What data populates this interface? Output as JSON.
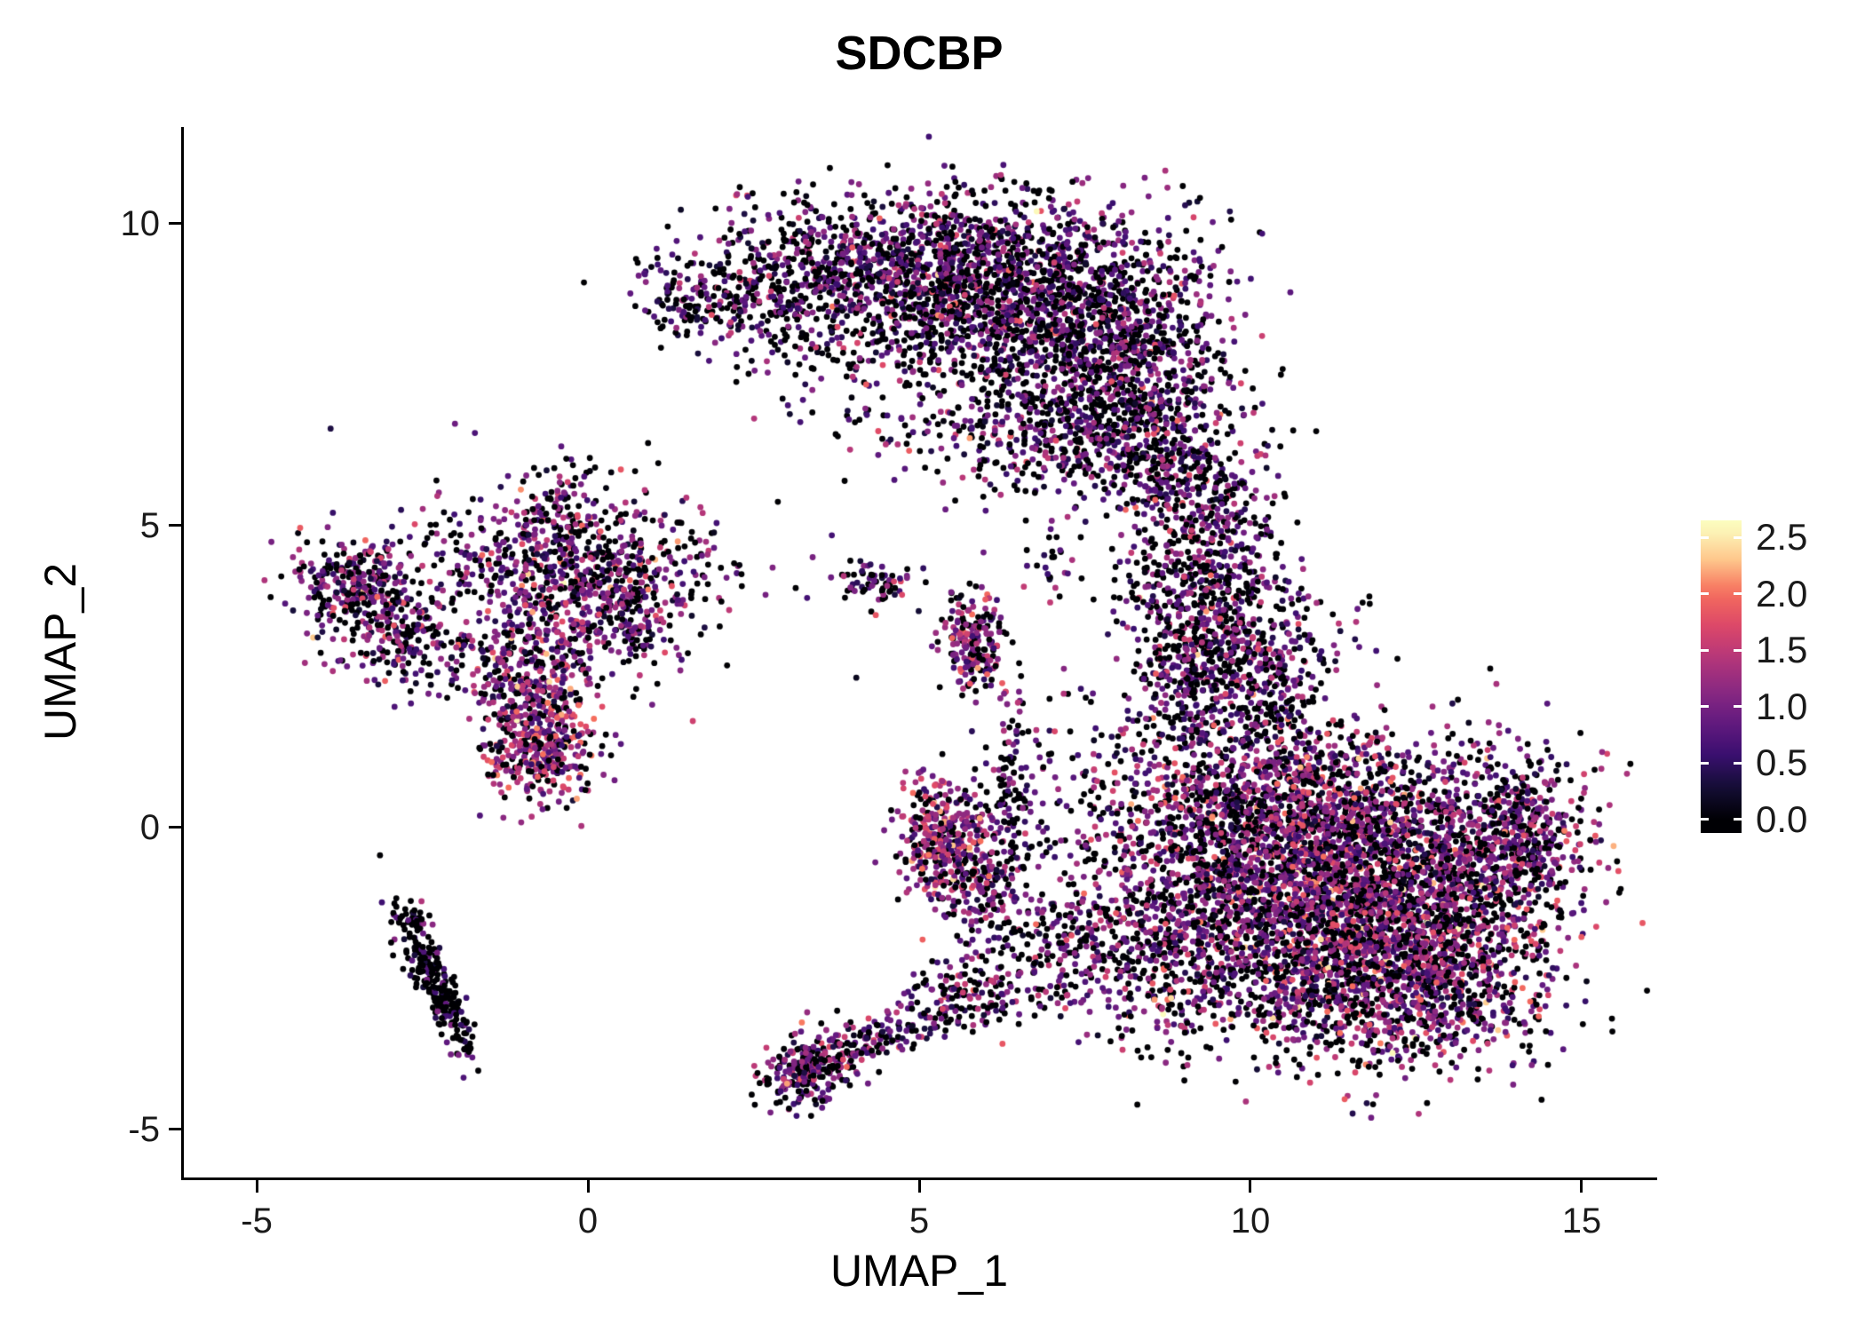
{
  "title": "SDCBP",
  "chart_data": {
    "type": "scatter",
    "title": "SDCBP",
    "xlabel": "UMAP_1",
    "ylabel": "UMAP_2",
    "xlim": [
      -6.1,
      16.1
    ],
    "ylim": [
      -5.8,
      11.6
    ],
    "xticks": [
      -5,
      0,
      5,
      10,
      15
    ],
    "yticks": [
      -5,
      0,
      5,
      10
    ],
    "grid": false,
    "background": "#ffffff",
    "point_radius_px": 3.4,
    "seed": 42,
    "colorbar": {
      "position": "right",
      "ticks": [
        2.5,
        2.0,
        1.5,
        1.0,
        0.5,
        0.0
      ],
      "domain": [
        -0.12,
        2.65
      ],
      "value_range": [
        0,
        2.6
      ],
      "stops": [
        "#000004",
        "#140e36",
        "#3b0f70",
        "#641a80",
        "#8c2981",
        "#b73779",
        "#de4968",
        "#f7705c",
        "#fec98d",
        "#fcfdbf"
      ]
    },
    "clusters": [
      {
        "cx": 4.6,
        "cy": 9.4,
        "sx": 1.5,
        "sy": 0.55,
        "rot": 0,
        "n": 850,
        "p0": 0.42,
        "mean": 0.85,
        "sd": 0.45
      },
      {
        "cx": 6.6,
        "cy": 8.7,
        "sx": 1.2,
        "sy": 0.85,
        "rot": 0,
        "n": 1300,
        "p0": 0.42,
        "mean": 0.85,
        "sd": 0.45
      },
      {
        "cx": 8.1,
        "cy": 7.5,
        "sx": 0.85,
        "sy": 0.95,
        "rot": 0,
        "n": 800,
        "p0": 0.42,
        "mean": 0.85,
        "sd": 0.45
      },
      {
        "cx": 7.2,
        "cy": 6.4,
        "sx": 1.1,
        "sy": 0.55,
        "rot": 0,
        "n": 350,
        "p0": 0.45,
        "mean": 0.85,
        "sd": 0.45
      },
      {
        "cx": 2.9,
        "cy": 8.8,
        "sx": 0.8,
        "sy": 0.55,
        "rot": 0,
        "n": 260,
        "p0": 0.45,
        "mean": 0.8,
        "sd": 0.45
      },
      {
        "cx": 5.0,
        "cy": 7.9,
        "sx": 1.3,
        "sy": 0.75,
        "rot": 0,
        "n": 220,
        "p0": 0.5,
        "mean": 0.8,
        "sd": 0.45
      },
      {
        "cx": 1.5,
        "cy": 8.8,
        "sx": 0.35,
        "sy": 0.3,
        "rot": 0,
        "n": 90,
        "p0": 0.45,
        "mean": 0.8,
        "sd": 0.45
      },
      {
        "cx": 8.7,
        "cy": 5.8,
        "sx": 0.45,
        "sy": 0.55,
        "rot": 0,
        "n": 140,
        "p0": 0.45,
        "mean": 0.85,
        "sd": 0.45
      },
      {
        "cx": 9.4,
        "cy": 4.6,
        "sx": 0.5,
        "sy": 1.0,
        "rot": 0,
        "n": 450,
        "p0": 0.4,
        "mean": 0.9,
        "sd": 0.45
      },
      {
        "cx": 9.8,
        "cy": 2.6,
        "sx": 0.75,
        "sy": 0.9,
        "rot": 0,
        "n": 650,
        "p0": 0.4,
        "mean": 0.9,
        "sd": 0.45
      },
      {
        "cx": 8.8,
        "cy": 3.4,
        "sx": 0.4,
        "sy": 0.9,
        "rot": 0,
        "n": 150,
        "p0": 0.5,
        "mean": 0.9,
        "sd": 0.45
      },
      {
        "cx": 11.2,
        "cy": -1.0,
        "sx": 1.5,
        "sy": 1.05,
        "rot": 0,
        "n": 2500,
        "p0": 0.33,
        "mean": 1.05,
        "sd": 0.5
      },
      {
        "cx": 12.2,
        "cy": -2.5,
        "sx": 1.15,
        "sy": 0.75,
        "rot": 0,
        "n": 1200,
        "p0": 0.33,
        "mean": 1.05,
        "sd": 0.5
      },
      {
        "cx": 10.4,
        "cy": 0.4,
        "sx": 1.2,
        "sy": 0.75,
        "rot": 0,
        "n": 950,
        "p0": 0.35,
        "mean": 1.0,
        "sd": 0.5
      },
      {
        "cx": 13.5,
        "cy": -0.4,
        "sx": 0.8,
        "sy": 0.85,
        "rot": 0,
        "n": 650,
        "p0": 0.35,
        "mean": 1.0,
        "sd": 0.5
      },
      {
        "cx": 9.0,
        "cy": -2.0,
        "sx": 0.8,
        "sy": 0.95,
        "rot": 0,
        "n": 500,
        "p0": 0.38,
        "mean": 1.0,
        "sd": 0.5
      },
      {
        "cx": 14.2,
        "cy": 0.2,
        "sx": 0.3,
        "sy": 0.45,
        "rot": 0,
        "n": 130,
        "p0": 0.35,
        "mean": 1.0,
        "sd": 0.5
      },
      {
        "cx": -0.3,
        "cy": 4.4,
        "sx": 1.05,
        "sy": 0.5,
        "rot": 0,
        "n": 480,
        "p0": 0.32,
        "mean": 1.0,
        "sd": 0.5
      },
      {
        "cx": -3.5,
        "cy": 4.0,
        "sx": 0.5,
        "sy": 0.45,
        "rot": 0,
        "n": 280,
        "p0": 0.35,
        "mean": 0.95,
        "sd": 0.5
      },
      {
        "cx": -2.7,
        "cy": 3.1,
        "sx": 0.45,
        "sy": 0.4,
        "rot": 0,
        "n": 200,
        "p0": 0.38,
        "mean": 0.95,
        "sd": 0.5
      },
      {
        "cx": -0.9,
        "cy": 2.7,
        "sx": 0.45,
        "sy": 0.7,
        "rot": 0,
        "n": 320,
        "p0": 0.3,
        "mean": 1.05,
        "sd": 0.5
      },
      {
        "cx": -0.7,
        "cy": 1.4,
        "sx": 0.42,
        "sy": 0.5,
        "rot": 0,
        "n": 380,
        "p0": 0.22,
        "mean": 1.25,
        "sd": 0.45
      },
      {
        "cx": 0.4,
        "cy": 3.4,
        "sx": 0.5,
        "sy": 0.5,
        "rot": 0,
        "n": 180,
        "p0": 0.35,
        "mean": 1.0,
        "sd": 0.5
      },
      {
        "cx": -0.6,
        "cy": 4.0,
        "sx": 1.7,
        "sy": 1.1,
        "rot": 0,
        "n": 240,
        "p0": 0.5,
        "mean": 0.9,
        "sd": 0.45
      },
      {
        "cx": -0.4,
        "cy": 5.5,
        "sx": 0.25,
        "sy": 0.35,
        "rot": 0,
        "n": 60,
        "p0": 0.45,
        "mean": 0.9,
        "sd": 0.45
      },
      {
        "cx": -2.3,
        "cy": -2.6,
        "sx": 0.65,
        "sy": 0.12,
        "rot": -66,
        "n": 230,
        "p0": 0.75,
        "mean": 0.6,
        "sd": 0.35
      },
      {
        "cx": -2.7,
        "cy": -1.5,
        "sx": 0.2,
        "sy": 0.12,
        "rot": -20,
        "n": 40,
        "p0": 0.6,
        "mean": 0.8,
        "sd": 0.4
      },
      {
        "cx": 4.35,
        "cy": 4.05,
        "sx": 0.3,
        "sy": 0.18,
        "rot": 0,
        "n": 70,
        "p0": 0.45,
        "mean": 0.9,
        "sd": 0.45
      },
      {
        "cx": 5.85,
        "cy": 3.0,
        "sx": 0.22,
        "sy": 0.45,
        "rot": 0,
        "n": 210,
        "p0": 0.3,
        "mean": 1.1,
        "sd": 0.45
      },
      {
        "cx": 6.4,
        "cy": 0.9,
        "sx": 0.15,
        "sy": 0.8,
        "rot": 0,
        "n": 90,
        "p0": 0.5,
        "mean": 0.9,
        "sd": 0.45
      },
      {
        "cx": 5.4,
        "cy": -0.2,
        "sx": 0.38,
        "sy": 0.5,
        "rot": 0,
        "n": 380,
        "p0": 0.25,
        "mean": 1.2,
        "sd": 0.5
      },
      {
        "cx": 6.0,
        "cy": -1.0,
        "sx": 0.3,
        "sy": 0.4,
        "rot": 0,
        "n": 130,
        "p0": 0.35,
        "mean": 1.0,
        "sd": 0.45
      },
      {
        "cx": 7.5,
        "cy": 0.2,
        "sx": 0.7,
        "sy": 1.1,
        "rot": 0,
        "n": 160,
        "p0": 0.5,
        "mean": 0.9,
        "sd": 0.45
      },
      {
        "cx": 7.0,
        "cy": -2.0,
        "sx": 0.6,
        "sy": 0.6,
        "rot": 0,
        "n": 220,
        "p0": 0.4,
        "mean": 1.0,
        "sd": 0.45
      },
      {
        "cx": 7.0,
        "cy": 4.4,
        "sx": 0.3,
        "sy": 0.3,
        "rot": 0,
        "n": 25,
        "p0": 0.5,
        "mean": 0.8,
        "sd": 0.4
      },
      {
        "cx": 3.3,
        "cy": -4.0,
        "sx": 0.38,
        "sy": 0.28,
        "rot": 30,
        "n": 240,
        "p0": 0.4,
        "mean": 1.0,
        "sd": 0.45
      },
      {
        "cx": 4.4,
        "cy": -3.5,
        "sx": 0.7,
        "sy": 0.16,
        "rot": 25,
        "n": 140,
        "p0": 0.45,
        "mean": 0.9,
        "sd": 0.45
      },
      {
        "cx": 5.7,
        "cy": -2.7,
        "sx": 0.45,
        "sy": 0.3,
        "rot": 20,
        "n": 150,
        "p0": 0.4,
        "mean": 1.0,
        "sd": 0.45
      }
    ]
  }
}
